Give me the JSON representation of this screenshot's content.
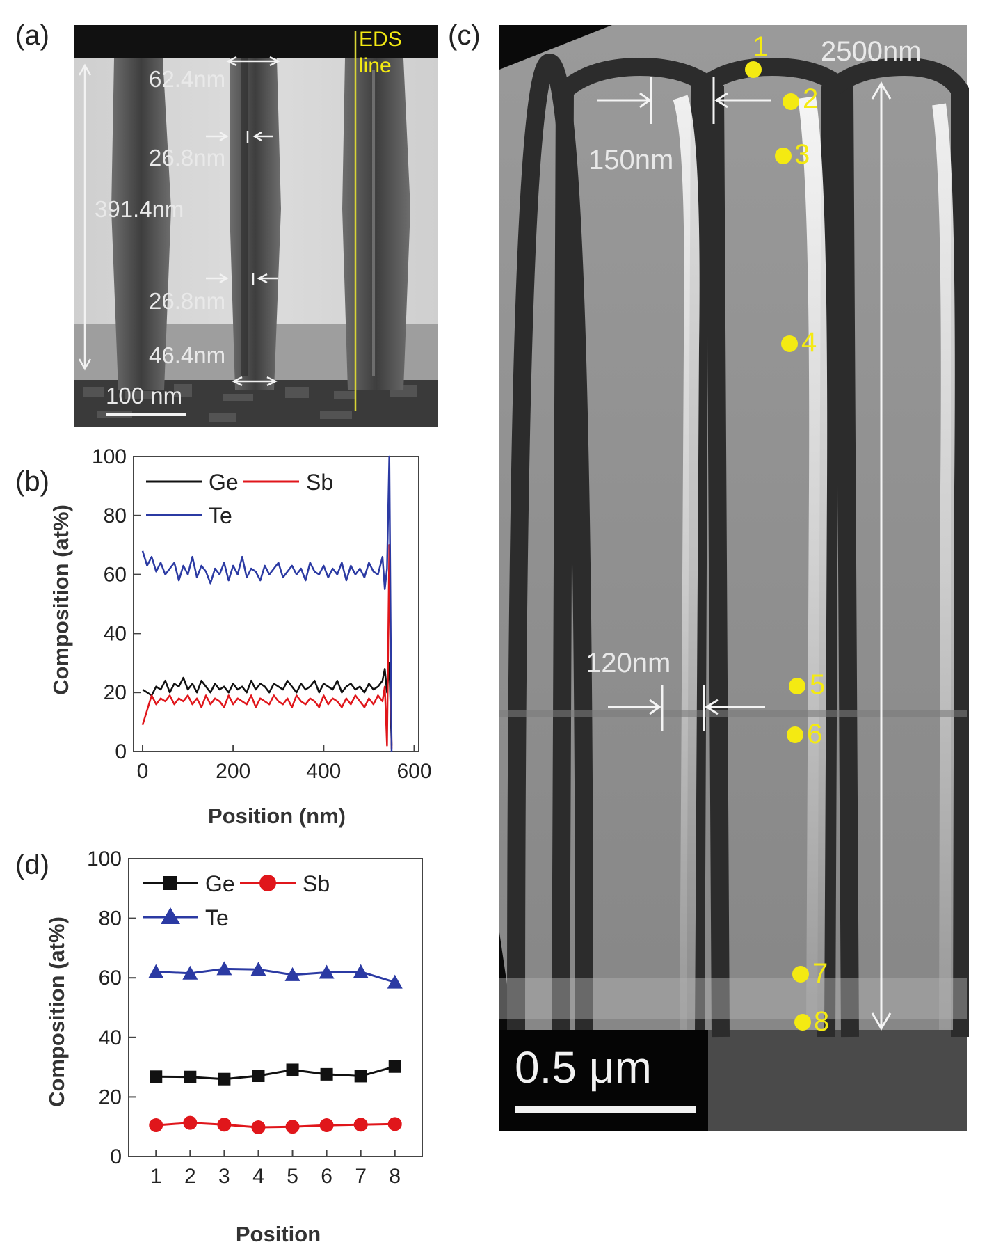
{
  "panels": {
    "a": {
      "label": "(a)",
      "eds_line_label_1": "EDS",
      "eds_line_label_2": "line",
      "dims": [
        "62.4nm",
        "26.8nm",
        "391.4nm",
        "26.8nm",
        "46.4nm"
      ],
      "scalebar": "100 nm"
    },
    "b": {
      "label": "(b)"
    },
    "c": {
      "label": "(c)",
      "dims": {
        "height": "2500nm",
        "top_gap": "150nm",
        "bottom_gap": "120nm"
      },
      "points": [
        "1",
        "2",
        "3",
        "4",
        "5",
        "6",
        "7",
        "8"
      ],
      "scalebar": "0.5 μm"
    },
    "d": {
      "label": "(d)"
    }
  },
  "colors": {
    "Ge": "#111111",
    "Sb": "#e0161b",
    "Te": "#2b3aa3",
    "marker": "#f4ea12"
  },
  "chart_data": [
    {
      "panel": "b",
      "type": "line",
      "xlabel": "Position (nm)",
      "ylabel": "Composition (at%)",
      "xlim": [
        -20,
        610
      ],
      "ylim": [
        0,
        100
      ],
      "xticks": [
        0,
        200,
        400,
        600
      ],
      "yticks": [
        0,
        20,
        40,
        60,
        80,
        100
      ],
      "legend": "top-left",
      "series": [
        {
          "name": "Ge",
          "color": "#111111",
          "x": [
            0,
            10,
            20,
            30,
            40,
            50,
            60,
            70,
            80,
            90,
            100,
            110,
            120,
            130,
            140,
            150,
            160,
            170,
            180,
            190,
            200,
            210,
            220,
            230,
            240,
            250,
            260,
            270,
            280,
            290,
            300,
            310,
            320,
            330,
            340,
            350,
            360,
            370,
            380,
            390,
            400,
            410,
            420,
            430,
            440,
            450,
            460,
            470,
            480,
            490,
            500,
            510,
            520,
            530,
            535,
            540,
            545,
            550
          ],
          "y": [
            21,
            20,
            19,
            22,
            21,
            24,
            20,
            23,
            22,
            25,
            21,
            23,
            20,
            24,
            22,
            20,
            23,
            21,
            22,
            20,
            23,
            21,
            22,
            20,
            24,
            21,
            23,
            22,
            20,
            23,
            22,
            21,
            24,
            22,
            20,
            23,
            21,
            22,
            24,
            20,
            23,
            22,
            21,
            24,
            20,
            22,
            23,
            21,
            22,
            20,
            23,
            21,
            22,
            24,
            28,
            20,
            30,
            2
          ]
        },
        {
          "name": "Sb",
          "color": "#e0161b",
          "x": [
            0,
            10,
            20,
            30,
            40,
            50,
            60,
            70,
            80,
            90,
            100,
            110,
            120,
            130,
            140,
            150,
            160,
            170,
            180,
            190,
            200,
            210,
            220,
            230,
            240,
            250,
            260,
            270,
            280,
            290,
            300,
            310,
            320,
            330,
            340,
            350,
            360,
            370,
            380,
            390,
            400,
            410,
            420,
            430,
            440,
            450,
            460,
            470,
            480,
            490,
            500,
            510,
            520,
            530,
            535,
            540,
            545,
            550
          ],
          "y": [
            9,
            14,
            19,
            16,
            18,
            17,
            19,
            16,
            18,
            17,
            19,
            16,
            18,
            15,
            19,
            16,
            18,
            17,
            15,
            19,
            16,
            18,
            17,
            16,
            19,
            15,
            18,
            17,
            16,
            19,
            17,
            16,
            18,
            15,
            19,
            17,
            16,
            18,
            17,
            15,
            19,
            16,
            18,
            17,
            15,
            18,
            16,
            19,
            17,
            15,
            18,
            16,
            19,
            17,
            22,
            2,
            70,
            1
          ]
        },
        {
          "name": "Te",
          "color": "#2b3aa3",
          "x": [
            0,
            10,
            20,
            30,
            40,
            50,
            60,
            70,
            80,
            90,
            100,
            110,
            120,
            130,
            140,
            150,
            160,
            170,
            180,
            190,
            200,
            210,
            220,
            230,
            240,
            250,
            260,
            270,
            280,
            290,
            300,
            310,
            320,
            330,
            340,
            350,
            360,
            370,
            380,
            390,
            400,
            410,
            420,
            430,
            440,
            450,
            460,
            470,
            480,
            490,
            500,
            510,
            520,
            530,
            535,
            540,
            545,
            550
          ],
          "y": [
            68,
            63,
            66,
            61,
            64,
            60,
            62,
            64,
            58,
            63,
            60,
            66,
            59,
            63,
            61,
            57,
            62,
            60,
            64,
            58,
            63,
            60,
            66,
            59,
            62,
            61,
            58,
            63,
            60,
            62,
            64,
            59,
            61,
            63,
            60,
            62,
            58,
            64,
            61,
            60,
            63,
            59,
            62,
            60,
            64,
            58,
            63,
            60,
            62,
            59,
            64,
            61,
            60,
            66,
            55,
            62,
            100,
            0
          ]
        }
      ]
    },
    {
      "panel": "d",
      "type": "line",
      "xlabel": "Position",
      "ylabel": "Composition (at%)",
      "xlim": [
        0.2,
        8.8
      ],
      "ylim": [
        0,
        100
      ],
      "xticks": [
        1,
        2,
        3,
        4,
        5,
        6,
        7,
        8
      ],
      "yticks": [
        0,
        20,
        40,
        60,
        80,
        100
      ],
      "legend": "top-left",
      "series": [
        {
          "name": "Ge",
          "color": "#111111",
          "marker": "square",
          "x": [
            1,
            2,
            3,
            4,
            5,
            6,
            7,
            8
          ],
          "y": [
            26.8,
            26.7,
            26.0,
            27.1,
            29.1,
            27.6,
            27.0,
            30.2
          ]
        },
        {
          "name": "Sb",
          "color": "#e0161b",
          "marker": "circle",
          "x": [
            1,
            2,
            3,
            4,
            5,
            6,
            7,
            8
          ],
          "y": [
            10.5,
            11.3,
            10.7,
            9.8,
            10.0,
            10.5,
            10.7,
            10.9
          ]
        },
        {
          "name": "Te",
          "color": "#2b3aa3",
          "marker": "triangle",
          "x": [
            1,
            2,
            3,
            4,
            5,
            6,
            7,
            8
          ],
          "y": [
            62.0,
            61.5,
            63.0,
            62.8,
            61.0,
            61.8,
            62.0,
            58.5
          ]
        }
      ]
    }
  ]
}
